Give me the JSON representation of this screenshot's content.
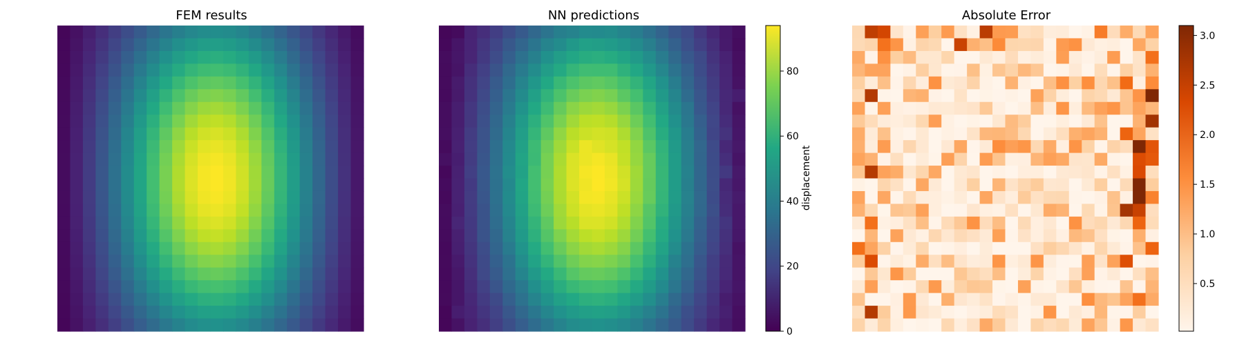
{
  "chart_data": [
    {
      "type": "heatmap",
      "title": "FEM results",
      "grid_size": [
        24,
        24
      ],
      "colormap": "viridis",
      "value_range": [
        0,
        94
      ],
      "field": "displacement (smooth bell-shaped field, peak near column 12, row 11)",
      "axes": "off"
    },
    {
      "type": "heatmap",
      "title": "NN predictions",
      "grid_size": [
        24,
        24
      ],
      "colormap": "viridis",
      "value_range": [
        0,
        94
      ],
      "colorbar": {
        "label": "displacement",
        "ticks": [
          0,
          20,
          40,
          60,
          80
        ]
      },
      "axes": "off"
    },
    {
      "type": "heatmap",
      "title": "Absolute Error",
      "grid_size": [
        24,
        24
      ],
      "colormap": "oranges",
      "value_range": [
        0.02,
        3.1
      ],
      "colorbar": {
        "ticks": [
          0.5,
          1.0,
          1.5,
          2.0,
          2.5,
          3.0
        ]
      },
      "axes": "off"
    }
  ],
  "panel_titles": [
    "FEM results",
    "NN predictions",
    "Absolute Error"
  ],
  "colorbar_displacement": {
    "label": "displacement",
    "ticks": [
      "0",
      "20",
      "40",
      "60",
      "80"
    ]
  },
  "colorbar_error": {
    "ticks": [
      "0.5",
      "1.0",
      "1.5",
      "2.0",
      "2.5",
      "3.0"
    ]
  },
  "colors": {
    "viridis_low": "#440154",
    "viridis_high": "#fde725",
    "oranges_low": "#fff5eb",
    "oranges_high": "#7f2704"
  }
}
